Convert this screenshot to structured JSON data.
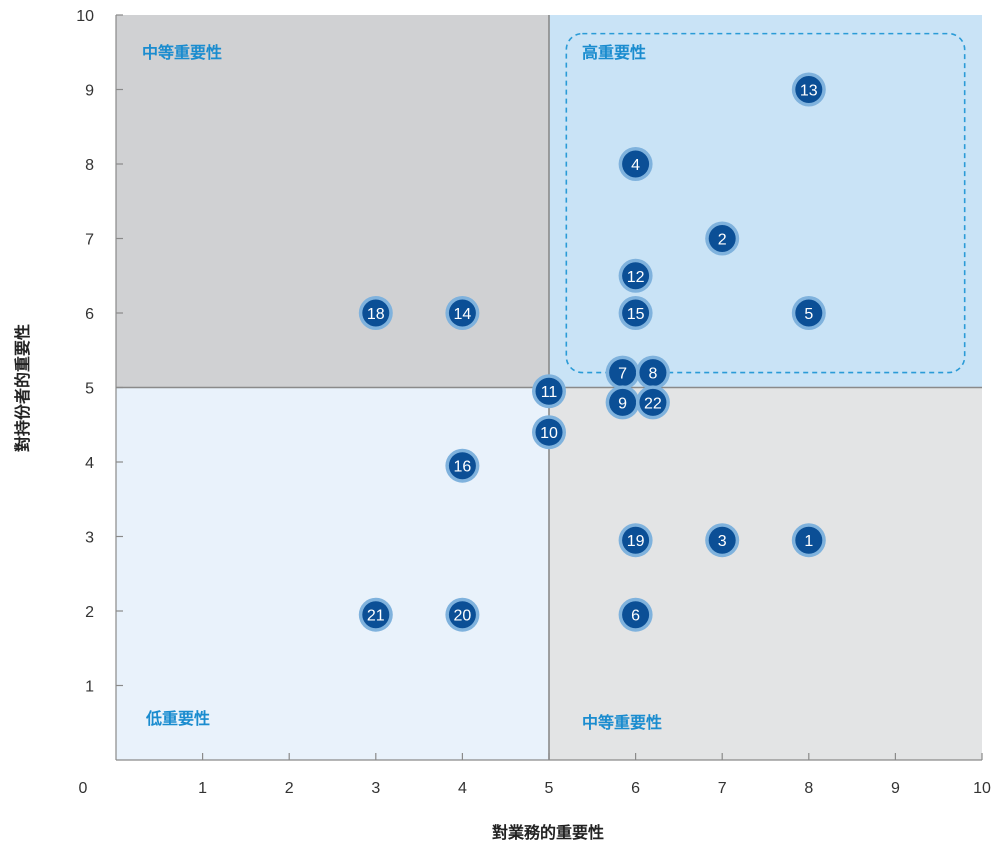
{
  "chart_data": {
    "type": "scatter",
    "title": "",
    "xlabel": "對業務的重要性",
    "ylabel": "對持份者的重要性",
    "xlim": [
      0,
      10
    ],
    "ylim": [
      0,
      10
    ],
    "x_ticks": [
      "0",
      "1",
      "2",
      "3",
      "4",
      "5",
      "6",
      "7",
      "8",
      "9",
      "10"
    ],
    "y_ticks": [
      "1",
      "2",
      "3",
      "4",
      "5",
      "6",
      "7",
      "8",
      "9",
      "10"
    ],
    "grid": false,
    "quadrant_split": {
      "x": 5,
      "y": 5
    },
    "quadrants": [
      {
        "label": "中等重要性",
        "x_range": [
          0,
          5
        ],
        "y_range": [
          5,
          10
        ],
        "fill": "#d0d1d3"
      },
      {
        "label": "高重要性",
        "x_range": [
          5,
          10
        ],
        "y_range": [
          5,
          10
        ],
        "fill": "#c9e3f6"
      },
      {
        "label": "低重要性",
        "x_range": [
          0,
          5
        ],
        "y_range": [
          0,
          5
        ],
        "fill": "#e9f2fb"
      },
      {
        "label": "中等重要性",
        "x_range": [
          5,
          10
        ],
        "y_range": [
          0,
          5
        ],
        "fill": "#e3e4e5"
      }
    ],
    "highlight_region": {
      "x_range": [
        5.2,
        9.8
      ],
      "y_range": [
        5.2,
        9.75
      ],
      "style": "dashed",
      "color": "#2a9bd7"
    },
    "points": [
      {
        "label": "13",
        "x": 8,
        "y": 9
      },
      {
        "label": "4",
        "x": 6,
        "y": 8
      },
      {
        "label": "2",
        "x": 7,
        "y": 7
      },
      {
        "label": "12",
        "x": 6,
        "y": 6.5
      },
      {
        "label": "15",
        "x": 6,
        "y": 6
      },
      {
        "label": "5",
        "x": 8,
        "y": 6
      },
      {
        "label": "18",
        "x": 3,
        "y": 6
      },
      {
        "label": "14",
        "x": 4,
        "y": 6
      },
      {
        "label": "7",
        "x": 5.85,
        "y": 5.2
      },
      {
        "label": "8",
        "x": 6.2,
        "y": 5.2
      },
      {
        "label": "9",
        "x": 5.85,
        "y": 4.8
      },
      {
        "label": "22",
        "x": 6.2,
        "y": 4.8
      },
      {
        "label": "11",
        "x": 5,
        "y": 4.95
      },
      {
        "label": "10",
        "x": 5,
        "y": 4.4
      },
      {
        "label": "16",
        "x": 4,
        "y": 3.95
      },
      {
        "label": "19",
        "x": 6,
        "y": 2.95
      },
      {
        "label": "3",
        "x": 7,
        "y": 2.95
      },
      {
        "label": "1",
        "x": 8,
        "y": 2.95
      },
      {
        "label": "21",
        "x": 3,
        "y": 1.95
      },
      {
        "label": "20",
        "x": 4,
        "y": 1.95
      },
      {
        "label": "6",
        "x": 6,
        "y": 1.95
      }
    ],
    "colors": {
      "point_fill": "#0b4f96",
      "point_ring": "#7fb2dd",
      "axis": "#8a8a8a",
      "divider": "#8a8a8a",
      "quad_label": "#1a8ccf"
    }
  }
}
